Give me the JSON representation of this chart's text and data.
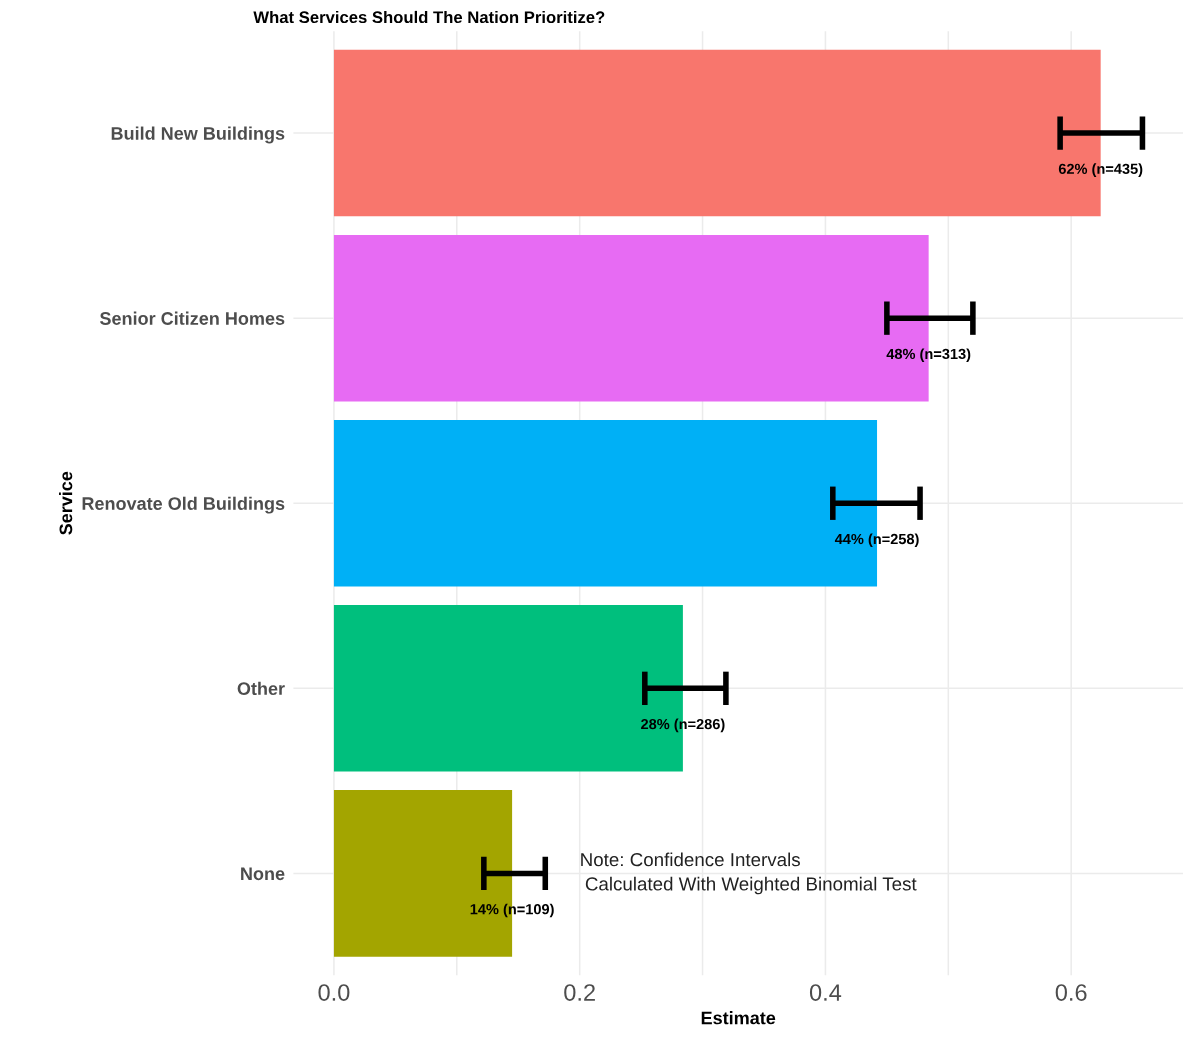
{
  "chart_data": {
    "type": "bar",
    "orientation": "horizontal",
    "title": "What Services Should The Nation Prioritize?",
    "xlabel": "Estimate",
    "ylabel": "Service",
    "categories": [
      "Build New Buildings",
      "Senior Citizen Homes",
      "Renovate Old Buildings",
      "Other",
      "None"
    ],
    "values": [
      0.624,
      0.484,
      0.442,
      0.284,
      0.145
    ],
    "colors": [
      "#f8766d",
      "#e76bf3",
      "#00b0f6",
      "#00bf7d",
      "#a3a500"
    ],
    "errors": [
      [
        0.591,
        0.658
      ],
      [
        0.45,
        0.52
      ],
      [
        0.406,
        0.477
      ],
      [
        0.253,
        0.319
      ],
      [
        0.122,
        0.172
      ]
    ],
    "value_labels": [
      "62% (n=435)",
      "48% (n=313)",
      "44% (n=258)",
      "28% (n=286)",
      "14% (n=109)"
    ],
    "xlim": [
      -0.033,
      0.691
    ],
    "xticks": [
      {
        "value": 0,
        "label": "0.0"
      },
      {
        "value": 0.1,
        "label": null
      },
      0.2,
      {
        "value": 0.3,
        "label": null
      },
      0.4,
      {
        "value": 0.5,
        "label": null
      },
      0.6
    ],
    "grid": true,
    "legend": false,
    "annotations": [
      "Note: Confidence Intervals\n Calculated With Weighted Binomial Test"
    ]
  }
}
